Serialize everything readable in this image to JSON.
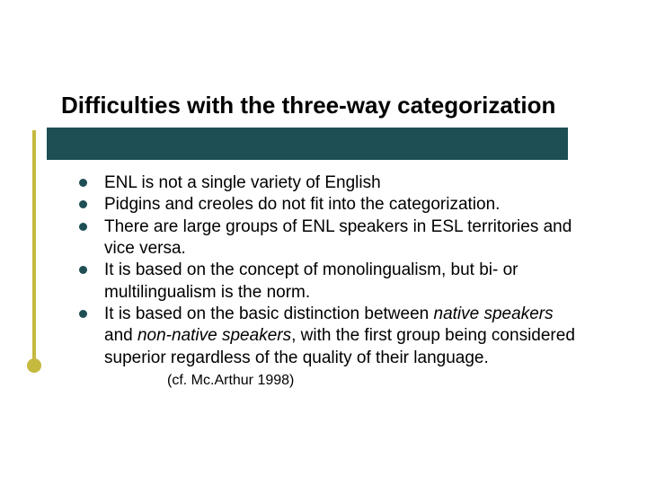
{
  "slide": {
    "title": "Difficulties with the three-way categorization",
    "bar_color": "#1d4f54",
    "accent_color": "#c5b93e",
    "background_color": "#ffffff",
    "title_fontsize": 26,
    "body_fontsize": 19,
    "bullets": [
      {
        "text": "ENL is not a single variety of English"
      },
      {
        "text": "Pidgins and creoles do not fit into the categorization."
      },
      {
        "text": "There are large groups of ENL speakers in ESL territories and vice versa."
      },
      {
        "text": "It is based on the concept of monolingualism, but bi- or multilingualism is the norm."
      },
      {
        "pre": "It is based on the basic distinction between ",
        "ital1": "native speakers",
        "mid": " and ",
        "ital2": "non-native speakers",
        "post": ", with the first group being considered superior regardless of the quality of their language.",
        "citation": "(cf. Mc.Arthur 1998)"
      }
    ]
  }
}
